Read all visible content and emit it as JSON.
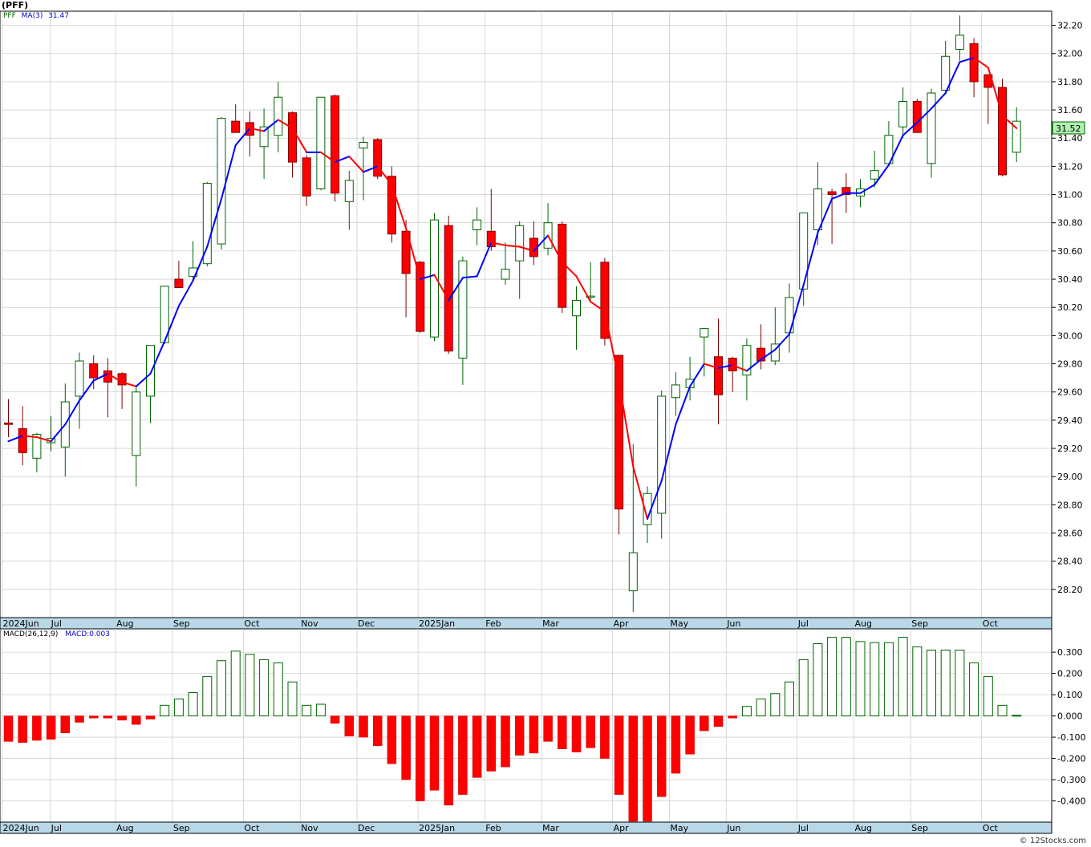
{
  "symbol_label": "(PFF)",
  "watermark": "© 12Stocks.com",
  "price_panel": {
    "legend_symbol": "PFF",
    "legend_ma": "MA(3)",
    "legend_ma_value": "31.47",
    "last_price_label": "31.52",
    "y_ticks": [
      28.2,
      28.4,
      28.6,
      28.8,
      29.0,
      29.2,
      29.4,
      29.6,
      29.8,
      30.0,
      30.2,
      30.4,
      30.6,
      30.8,
      31.0,
      31.2,
      31.4,
      31.6,
      31.8,
      32.0,
      32.2
    ]
  },
  "macd_panel": {
    "legend_label": "MACD(26,12,9)",
    "legend_value": "MACD:0.003",
    "y_ticks": [
      "0.300",
      "0.200",
      "0.100",
      "0.000",
      "-0.100",
      "-0.200",
      "-0.300",
      "-0.400"
    ]
  },
  "x_axis_labels": [
    {
      "label": "2024Jun",
      "week": 1
    },
    {
      "label": "Jul",
      "week": 4.4
    },
    {
      "label": "Aug",
      "week": 9
    },
    {
      "label": "Sep",
      "week": 13
    },
    {
      "label": "Oct",
      "week": 18
    },
    {
      "label": "Nov",
      "week": 22
    },
    {
      "label": "Dec",
      "week": 26
    },
    {
      "label": "2025Jan",
      "week": 30.3
    },
    {
      "label": "Feb",
      "week": 35
    },
    {
      "label": "Mar",
      "week": 39
    },
    {
      "label": "Apr",
      "week": 44
    },
    {
      "label": "May",
      "week": 48
    },
    {
      "label": "Jun",
      "week": 52
    },
    {
      "label": "Jul",
      "week": 57
    },
    {
      "label": "Aug",
      "week": 61
    },
    {
      "label": "Sep",
      "week": 65
    },
    {
      "label": "Oct",
      "week": 70
    }
  ],
  "colors": {
    "up": "#006400",
    "down_fill": "#ff0000",
    "ma_up": "#0000ff",
    "ma_down": "#ff0000",
    "grid": "#c0c0c0",
    "axis_band": "#b8d8e8",
    "last_price_bg": "#b0f0b0"
  },
  "chart_data": {
    "type": "candlestick",
    "series": [
      {
        "name": "PFF",
        "ohlc": [
          [
            29.38,
            29.55,
            29.28,
            29.37
          ],
          [
            29.34,
            29.5,
            29.08,
            29.17
          ],
          [
            29.13,
            29.31,
            29.03,
            29.3
          ],
          [
            29.24,
            29.43,
            29.18,
            29.27
          ],
          [
            29.21,
            29.66,
            29.0,
            29.53
          ],
          [
            29.57,
            29.88,
            29.34,
            29.82
          ],
          [
            29.8,
            29.86,
            29.62,
            29.7
          ],
          [
            29.75,
            29.84,
            29.42,
            29.67
          ],
          [
            29.73,
            29.74,
            29.48,
            29.65
          ],
          [
            29.15,
            29.64,
            28.93,
            29.6
          ],
          [
            29.57,
            29.93,
            29.38,
            29.93
          ],
          [
            29.95,
            30.35,
            29.94,
            30.35
          ],
          [
            30.4,
            30.53,
            30.34,
            30.34
          ],
          [
            30.42,
            30.67,
            30.39,
            30.48
          ],
          [
            30.51,
            31.09,
            30.49,
            31.08
          ],
          [
            30.65,
            31.55,
            30.61,
            31.54
          ],
          [
            31.52,
            31.64,
            31.44,
            31.44
          ],
          [
            31.51,
            31.59,
            31.27,
            31.42
          ],
          [
            31.34,
            31.61,
            31.11,
            31.48
          ],
          [
            31.42,
            31.8,
            31.3,
            31.69
          ],
          [
            31.58,
            31.59,
            31.12,
            31.23
          ],
          [
            31.26,
            31.28,
            30.92,
            30.99
          ],
          [
            31.04,
            31.69,
            31.03,
            31.69
          ],
          [
            31.7,
            31.71,
            30.95,
            31.01
          ],
          [
            30.95,
            31.17,
            30.75,
            31.1
          ],
          [
            31.33,
            31.41,
            30.96,
            31.37
          ],
          [
            31.39,
            31.4,
            31.11,
            31.13
          ],
          [
            31.13,
            31.2,
            30.66,
            30.72
          ],
          [
            30.74,
            30.82,
            30.13,
            30.44
          ],
          [
            30.52,
            30.53,
            30.02,
            30.03
          ],
          [
            29.99,
            30.87,
            29.96,
            30.82
          ],
          [
            30.78,
            30.85,
            29.87,
            29.89
          ],
          [
            29.84,
            30.56,
            29.65,
            30.53
          ],
          [
            30.75,
            30.91,
            30.64,
            30.82
          ],
          [
            30.74,
            31.04,
            30.6,
            30.63
          ],
          [
            30.4,
            30.66,
            30.36,
            30.47
          ],
          [
            30.53,
            30.81,
            30.26,
            30.78
          ],
          [
            30.69,
            30.81,
            30.5,
            30.56
          ],
          [
            30.62,
            30.94,
            30.57,
            30.8
          ],
          [
            30.79,
            30.81,
            30.16,
            30.2
          ],
          [
            30.14,
            30.35,
            29.9,
            30.25
          ],
          [
            30.28,
            30.52,
            30.25,
            30.28
          ],
          [
            30.52,
            30.55,
            29.93,
            29.98
          ],
          [
            29.86,
            29.86,
            28.59,
            28.77
          ],
          [
            28.19,
            29.23,
            28.04,
            28.46
          ],
          [
            28.66,
            28.93,
            28.53,
            28.88
          ],
          [
            28.74,
            29.61,
            28.56,
            29.57
          ],
          [
            29.56,
            29.74,
            29.43,
            29.65
          ],
          [
            29.63,
            29.85,
            29.54,
            29.69
          ],
          [
            29.99,
            30.05,
            29.71,
            30.05
          ],
          [
            29.85,
            30.12,
            29.37,
            29.58
          ],
          [
            29.84,
            29.85,
            29.6,
            29.75
          ],
          [
            29.72,
            29.98,
            29.54,
            29.93
          ],
          [
            29.91,
            30.08,
            29.76,
            29.82
          ],
          [
            29.82,
            30.2,
            29.79,
            29.94
          ],
          [
            30.02,
            30.37,
            29.88,
            30.27
          ],
          [
            30.33,
            30.86,
            30.21,
            30.87
          ],
          [
            30.75,
            31.23,
            30.64,
            31.04
          ],
          [
            31.02,
            31.04,
            30.65,
            31.0
          ],
          [
            31.05,
            31.15,
            30.87,
            31.0
          ],
          [
            30.99,
            31.11,
            30.91,
            31.04
          ],
          [
            31.11,
            31.31,
            31.05,
            31.17
          ],
          [
            31.22,
            31.52,
            31.2,
            31.42
          ],
          [
            31.48,
            31.76,
            31.4,
            31.66
          ],
          [
            31.66,
            31.68,
            31.44,
            31.44
          ],
          [
            31.22,
            31.75,
            31.12,
            31.72
          ],
          [
            31.74,
            32.09,
            31.71,
            31.98
          ],
          [
            32.03,
            32.27,
            31.95,
            32.13
          ],
          [
            32.07,
            32.11,
            31.69,
            31.8
          ],
          [
            31.85,
            31.85,
            31.5,
            31.76
          ],
          [
            31.76,
            31.82,
            31.13,
            31.14
          ],
          [
            31.3,
            31.62,
            31.23,
            31.52
          ]
        ]
      },
      {
        "name": "MA(3)",
        "values": [
          29.25,
          29.29,
          29.28,
          29.25,
          29.37,
          29.54,
          29.68,
          29.73,
          29.67,
          29.64,
          29.73,
          29.96,
          30.21,
          30.39,
          30.63,
          30.97,
          31.35,
          31.47,
          31.45,
          31.53,
          31.47,
          31.3,
          31.3,
          31.23,
          31.27,
          31.16,
          31.2,
          31.07,
          30.76,
          30.4,
          30.43,
          30.25,
          30.41,
          30.42,
          30.66,
          30.64,
          30.63,
          30.6,
          30.71,
          30.52,
          30.42,
          30.24,
          30.17,
          29.68,
          29.07,
          28.7,
          28.97,
          29.37,
          29.64,
          29.8,
          29.77,
          29.79,
          29.75,
          29.83,
          29.9,
          30.01,
          30.36,
          30.73,
          30.97,
          31.01,
          31.01,
          31.07,
          31.21,
          31.42,
          31.51,
          31.61,
          31.72,
          31.94,
          31.97,
          31.9,
          31.56,
          31.47
        ]
      },
      {
        "name": "MACD(26,12,9)",
        "values": [
          -0.12,
          -0.125,
          -0.115,
          -0.11,
          -0.08,
          -0.03,
          -0.01,
          -0.01,
          -0.02,
          -0.04,
          -0.015,
          0.05,
          0.08,
          0.11,
          0.185,
          0.26,
          0.305,
          0.29,
          0.265,
          0.25,
          0.16,
          0.05,
          0.055,
          -0.035,
          -0.095,
          -0.1,
          -0.14,
          -0.225,
          -0.3,
          -0.4,
          -0.35,
          -0.42,
          -0.37,
          -0.29,
          -0.26,
          -0.24,
          -0.185,
          -0.175,
          -0.12,
          -0.155,
          -0.17,
          -0.15,
          -0.2,
          -0.37,
          -0.52,
          -0.52,
          -0.38,
          -0.27,
          -0.18,
          -0.07,
          -0.05,
          -0.01,
          0.045,
          0.08,
          0.105,
          0.16,
          0.265,
          0.34,
          0.37,
          0.37,
          0.35,
          0.345,
          0.345,
          0.37,
          0.325,
          0.31,
          0.31,
          0.31,
          0.25,
          0.185,
          0.05,
          0.003
        ]
      }
    ],
    "ylim": [
      28.0,
      32.3
    ],
    "macd_ylim": [
      -0.5,
      0.41
    ],
    "grid": true
  }
}
